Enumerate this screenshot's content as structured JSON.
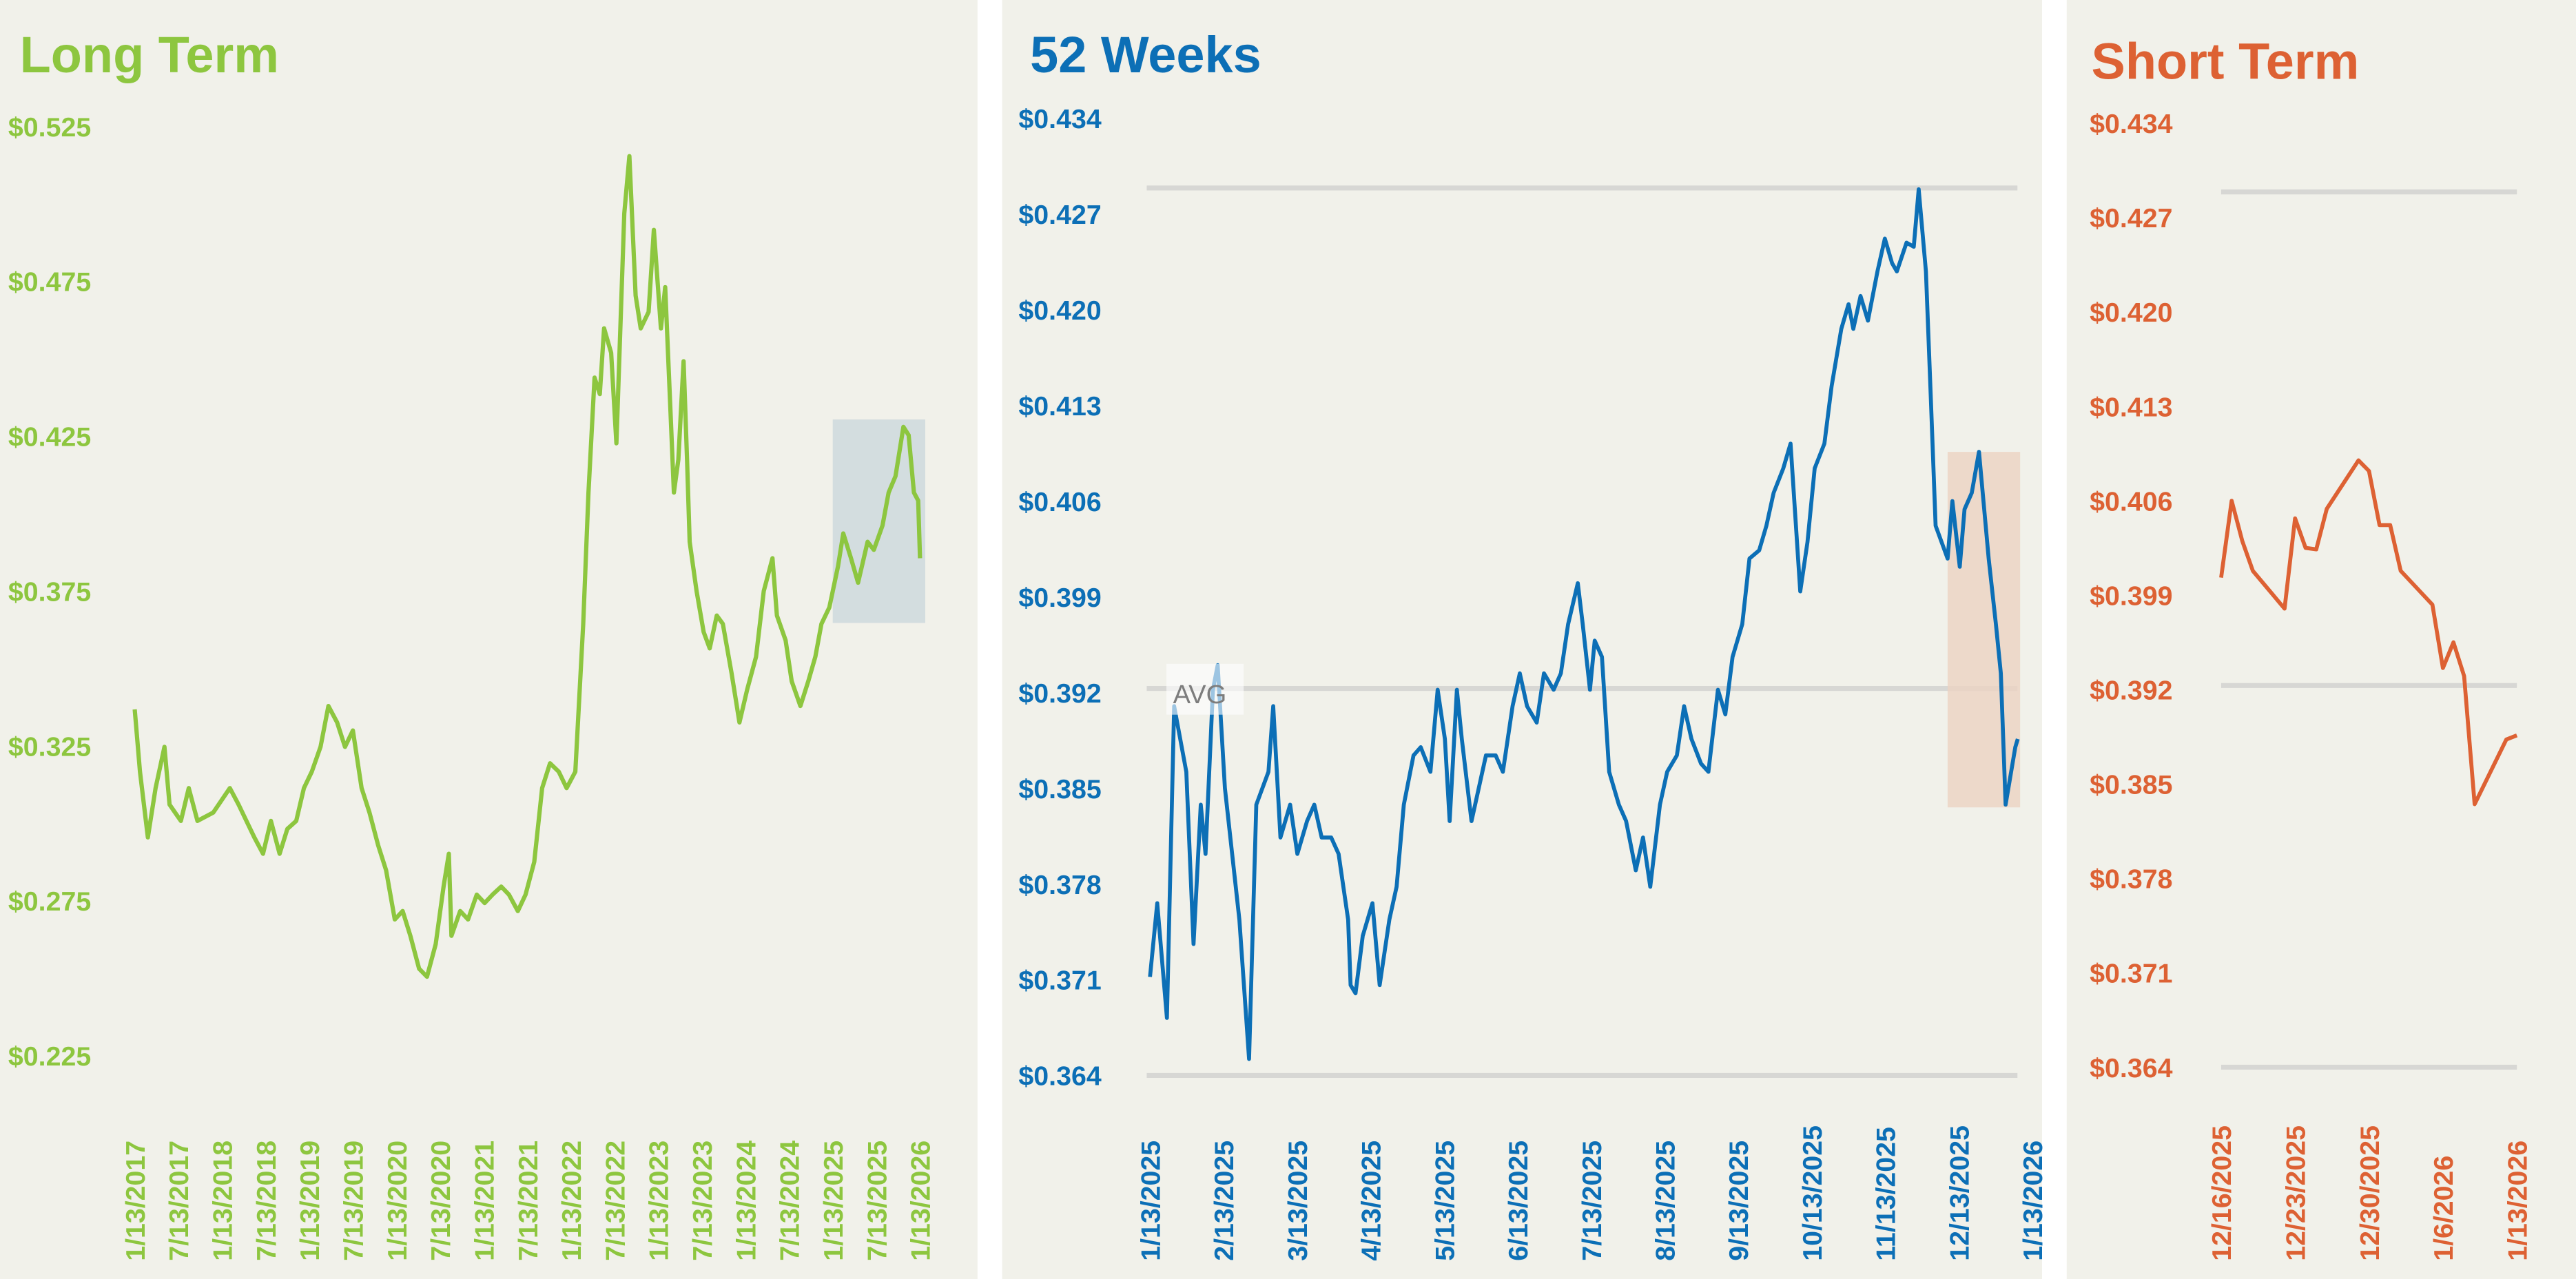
{
  "colors": {
    "long": "#8dc63f",
    "weeks": "#0c6fb6",
    "short": "#dd6133",
    "panel_bg": "#f1f1ea",
    "grid": "#d7d7d4",
    "long_highlight": "#b9ccd6",
    "weeks_highlight": "#ecd3c2"
  },
  "chart_data": [
    {
      "type": "line",
      "title": "Long Term",
      "ylim": [
        0.225,
        0.525
      ],
      "y_ticks": [
        "$0.525",
        "$0.475",
        "$0.425",
        "$0.375",
        "$0.325",
        "$0.275",
        "$0.225"
      ],
      "x_ticks": [
        "1/13/2017",
        "7/13/2017",
        "1/13/2018",
        "7/13/2018",
        "1/13/2019",
        "7/13/2019",
        "1/13/2020",
        "7/13/2020",
        "1/13/2021",
        "7/13/2021",
        "1/13/2022",
        "7/13/2022",
        "1/13/2023",
        "7/13/2023",
        "1/13/2024",
        "7/13/2024",
        "1/13/2025",
        "7/13/2025",
        "1/13/2026"
      ],
      "x_unit": "year",
      "xlim": [
        2017.03,
        2026.03
      ],
      "highlight": {
        "x": [
          2025.03,
          2026.09
        ],
        "y": [
          0.3647,
          0.4304
        ]
      },
      "x": [
        2017.03,
        2017.09,
        2017.18,
        2017.27,
        2017.37,
        2017.43,
        2017.56,
        2017.65,
        2017.75,
        2017.93,
        2018.12,
        2018.22,
        2018.31,
        2018.4,
        2018.5,
        2018.59,
        2018.69,
        2018.78,
        2018.88,
        2018.97,
        2019.06,
        2019.16,
        2019.25,
        2019.35,
        2019.44,
        2019.53,
        2019.63,
        2019.72,
        2019.82,
        2019.91,
        2020.01,
        2020.1,
        2020.19,
        2020.29,
        2020.38,
        2020.48,
        2020.57,
        2020.63,
        2020.66,
        2020.76,
        2020.85,
        2020.95,
        2021.04,
        2021.13,
        2021.23,
        2021.32,
        2021.42,
        2021.51,
        2021.61,
        2021.7,
        2021.79,
        2021.89,
        2021.98,
        2022.08,
        2022.11,
        2022.17,
        2022.23,
        2022.3,
        2022.36,
        2022.41,
        2022.49,
        2022.55,
        2022.64,
        2022.7,
        2022.77,
        2022.83,
        2022.92,
        2022.98,
        2023.06,
        2023.11,
        2023.17,
        2023.21,
        2023.26,
        2023.32,
        2023.36,
        2023.39,
        2023.47,
        2023.55,
        2023.62,
        2023.7,
        2023.77,
        2023.87,
        2023.96,
        2024.05,
        2024.15,
        2024.24,
        2024.34,
        2024.39,
        2024.49,
        2024.56,
        2024.66,
        2024.75,
        2024.83,
        2024.9,
        2024.99,
        2025.09,
        2025.15,
        2025.24,
        2025.32,
        2025.43,
        2025.5,
        2025.6,
        2025.67,
        2025.75,
        2025.84,
        2025.9,
        2025.96,
        2026.01,
        2026.03
      ],
      "y": [
        0.3368,
        0.3167,
        0.2955,
        0.3114,
        0.3247,
        0.3061,
        0.3008,
        0.3114,
        0.3008,
        0.3035,
        0.3114,
        0.3061,
        0.3008,
        0.2955,
        0.2902,
        0.3008,
        0.2902,
        0.2982,
        0.3008,
        0.3114,
        0.3167,
        0.3247,
        0.3379,
        0.3326,
        0.3247,
        0.33,
        0.3114,
        0.3035,
        0.2929,
        0.2849,
        0.269,
        0.2717,
        0.2637,
        0.2531,
        0.2505,
        0.261,
        0.2796,
        0.2902,
        0.2637,
        0.2717,
        0.269,
        0.277,
        0.2743,
        0.277,
        0.2796,
        0.277,
        0.2717,
        0.277,
        0.2876,
        0.3114,
        0.3194,
        0.3167,
        0.3114,
        0.3167,
        0.3326,
        0.3644,
        0.4068,
        0.4439,
        0.4386,
        0.4598,
        0.4519,
        0.4227,
        0.4969,
        0.5154,
        0.4704,
        0.4598,
        0.4651,
        0.4916,
        0.4598,
        0.4731,
        0.4333,
        0.4068,
        0.4174,
        0.4492,
        0.4174,
        0.3909,
        0.375,
        0.3618,
        0.3565,
        0.3671,
        0.3644,
        0.3485,
        0.3326,
        0.3432,
        0.3538,
        0.375,
        0.3856,
        0.3671,
        0.3591,
        0.3459,
        0.3379,
        0.3459,
        0.3538,
        0.3644,
        0.3697,
        0.383,
        0.3936,
        0.3856,
        0.3777,
        0.3909,
        0.3883,
        0.3962,
        0.4068,
        0.4121,
        0.428,
        0.4253,
        0.4068,
        0.4042,
        0.3856
      ]
    },
    {
      "type": "line",
      "title": "52 Weeks",
      "ylim": [
        0.364,
        0.434
      ],
      "y_ticks": [
        "$0.434",
        "$0.427",
        "$0.420",
        "$0.413",
        "$0.406",
        "$0.399",
        "$0.392",
        "$0.385",
        "$0.378",
        "$0.371",
        "$0.364"
      ],
      "x_ticks": [
        "1/13/2025",
        "2/13/2025",
        "3/13/2025",
        "4/13/2025",
        "5/13/2025",
        "6/13/2025",
        "7/13/2025",
        "8/13/2025",
        "9/13/2025",
        "10/13/2025",
        "11/13/2025",
        "12/13/2025",
        "1/13/2026"
      ],
      "x_unit": "days since 1/13/2025",
      "xlim": [
        0,
        365
      ],
      "reference_lines": [
        {
          "label": "",
          "value": 0.4289
        },
        {
          "label": "AVG",
          "value": 0.3923
        },
        {
          "label": "",
          "value": 0.364
        }
      ],
      "highlight": {
        "x": [
          330,
          360
        ],
        "y": [
          0.3836,
          0.4096
        ]
      },
      "x": [
        0,
        3,
        7,
        10,
        15,
        18,
        21,
        23,
        26,
        28,
        31,
        34,
        37,
        41,
        44,
        49,
        51,
        54,
        58,
        61,
        65,
        68,
        71,
        75,
        78,
        82,
        83,
        85,
        88,
        92,
        95,
        99,
        102,
        105,
        109,
        112,
        116,
        119,
        122,
        124,
        127,
        129,
        133,
        136,
        139,
        143,
        146,
        150,
        153,
        156,
        160,
        163,
        167,
        170,
        173,
        177,
        179,
        182,
        184,
        187,
        190,
        194,
        197,
        201,
        204,
        207,
        211,
        214,
        218,
        221,
        224,
        228,
        231,
        235,
        238,
        241,
        245,
        248,
        252,
        255,
        258,
        262,
        265,
        269,
        272,
        275,
        279,
        282,
        286,
        289,
        291,
        294,
        297,
        301,
        304,
        307,
        309,
        313,
        316,
        318,
        321,
        323,
        325,
        330,
        332,
        335,
        337,
        340,
        343,
        347,
        350,
        352,
        354,
        358,
        359
      ],
      "y": [
        0.3712,
        0.3766,
        0.3682,
        0.391,
        0.3862,
        0.3736,
        0.3838,
        0.3802,
        0.3922,
        0.394,
        0.385,
        0.3802,
        0.3754,
        0.3652,
        0.3838,
        0.3862,
        0.391,
        0.3814,
        0.3838,
        0.3802,
        0.3826,
        0.3838,
        0.3814,
        0.3814,
        0.3802,
        0.3754,
        0.3706,
        0.37,
        0.3742,
        0.3766,
        0.3706,
        0.3754,
        0.3778,
        0.3838,
        0.3874,
        0.388,
        0.3862,
        0.3922,
        0.3886,
        0.3826,
        0.3922,
        0.3886,
        0.3826,
        0.385,
        0.3874,
        0.3874,
        0.3862,
        0.391,
        0.3934,
        0.391,
        0.3898,
        0.3934,
        0.3922,
        0.3934,
        0.397,
        0.4,
        0.397,
        0.3922,
        0.3958,
        0.3946,
        0.3862,
        0.3838,
        0.3826,
        0.379,
        0.3814,
        0.3778,
        0.3838,
        0.3862,
        0.3874,
        0.391,
        0.3886,
        0.3868,
        0.3862,
        0.3922,
        0.3904,
        0.3946,
        0.397,
        0.4018,
        0.4024,
        0.4042,
        0.4066,
        0.4084,
        0.4102,
        0.3994,
        0.403,
        0.4084,
        0.4102,
        0.4144,
        0.4186,
        0.4204,
        0.4186,
        0.421,
        0.4192,
        0.4228,
        0.4252,
        0.4234,
        0.4228,
        0.4249,
        0.4246,
        0.4288,
        0.4228,
        0.4138,
        0.4042,
        0.4018,
        0.406,
        0.4012,
        0.4054,
        0.4066,
        0.4096,
        0.4018,
        0.397,
        0.3934,
        0.3838,
        0.388,
        0.3886
      ]
    },
    {
      "type": "line",
      "title": "Short Term",
      "ylim": [
        0.364,
        0.434
      ],
      "y_ticks": [
        "$0.434",
        "$0.427",
        "$0.420",
        "$0.413",
        "$0.406",
        "$0.399",
        "$0.392",
        "$0.385",
        "$0.378",
        "$0.371",
        "$0.364"
      ],
      "x_ticks": [
        "12/16/2025",
        "12/23/2025",
        "12/30/2025",
        "1/6/2026",
        "1/13/2026"
      ],
      "x_unit": "days since 12/16/2025",
      "xlim": [
        0,
        28
      ],
      "reference_lines": [
        {
          "label": "",
          "value": 0.4289
        },
        {
          "label": "",
          "value": 0.3923
        },
        {
          "label": "",
          "value": 0.364
        }
      ],
      "x": [
        0,
        1,
        2,
        3,
        6,
        7,
        8,
        9,
        10,
        13,
        14,
        15,
        16,
        17,
        20,
        21,
        22,
        23,
        24,
        27,
        28
      ],
      "y": [
        0.4003,
        0.406,
        0.403,
        0.4008,
        0.398,
        0.4047,
        0.4025,
        0.4024,
        0.4054,
        0.409,
        0.4082,
        0.4042,
        0.4042,
        0.4008,
        0.3983,
        0.3936,
        0.3955,
        0.393,
        0.3835,
        0.3883,
        0.3886
      ]
    }
  ]
}
